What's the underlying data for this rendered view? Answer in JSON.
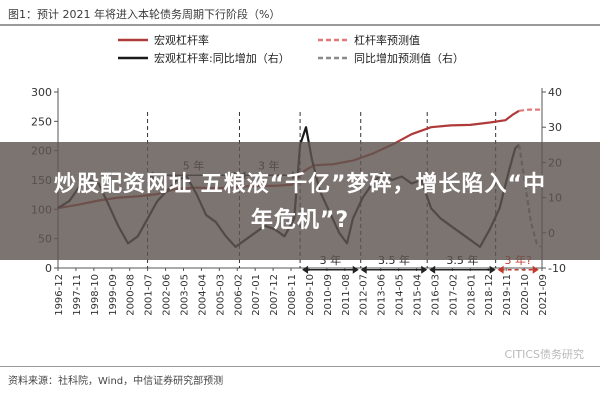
{
  "figure": {
    "title": "图1：预计 2021 年将进入本轮债务周期下行阶段（%）",
    "source": "资料来源：社科院，Wind，中信证券研究部预测",
    "watermark": "CITICS债务研究"
  },
  "overlay": {
    "line1": "炒股配资网址 五粮液“千亿”梦碎，增长陷入“中",
    "line2": "年危机”?"
  },
  "chart_data": {
    "type": "line",
    "x_ticks": [
      "1996-12",
      "1997-11",
      "1998-10",
      "1999-09",
      "2000-08",
      "2001-07",
      "2002-06",
      "2003-05",
      "2004-04",
      "2005-03",
      "2006-02",
      "2007-01",
      "2007-12",
      "2008-11",
      "2009-10",
      "2010-09",
      "2011-08",
      "2012-07",
      "2013-06",
      "2014-05",
      "2015-04",
      "2016-03",
      "2017-02",
      "2018-01",
      "2018-12",
      "2019-11",
      "2020-10",
      "2021-09"
    ],
    "x_range": [
      1996.92,
      2021.67
    ],
    "y_left": {
      "ticks": [
        0,
        50,
        100,
        150,
        200,
        250,
        300
      ],
      "range": [
        0,
        300
      ]
    },
    "y_right": {
      "ticks": [
        -10,
        0,
        10,
        20,
        30,
        40
      ],
      "range": [
        -10,
        40
      ]
    },
    "legend": [
      {
        "label": "宏观杠杆率",
        "color": "#b03a3a",
        "style": "solid"
      },
      {
        "label": "杠杆率预测值",
        "color": "#e07a7a",
        "style": "dashed"
      },
      {
        "label": "宏观杠杆率:同比增加（右）",
        "color": "#1a1a1a",
        "style": "solid"
      },
      {
        "label": "同比增加预测值（右）",
        "color": "#8a8a8a",
        "style": "dashed"
      }
    ],
    "series": [
      {
        "name": "宏观杠杆率",
        "axis": "left",
        "color": "#b03a3a",
        "dash": false,
        "points": [
          [
            1996.9,
            102
          ],
          [
            1998,
            108
          ],
          [
            1999,
            115
          ],
          [
            2000,
            120
          ],
          [
            2001,
            122
          ],
          [
            2002,
            126
          ],
          [
            2003,
            135
          ],
          [
            2004,
            137
          ],
          [
            2005,
            136
          ],
          [
            2006,
            138
          ],
          [
            2007,
            140
          ],
          [
            2008,
            140
          ],
          [
            2008.9,
            142
          ],
          [
            2009.5,
            165
          ],
          [
            2010,
            175
          ],
          [
            2011,
            177
          ],
          [
            2012,
            183
          ],
          [
            2013,
            195
          ],
          [
            2014,
            210
          ],
          [
            2015,
            228
          ],
          [
            2016,
            240
          ],
          [
            2017,
            243
          ],
          [
            2018,
            244
          ],
          [
            2019,
            248
          ],
          [
            2019.8,
            252
          ],
          [
            2020.2,
            262
          ],
          [
            2020.5,
            268
          ]
        ]
      },
      {
        "name": "杠杆率预测值",
        "axis": "left",
        "color": "#e07a7a",
        "dash": true,
        "points": [
          [
            2020.5,
            268
          ],
          [
            2021,
            270
          ],
          [
            2021.6,
            270
          ]
        ]
      },
      {
        "name": "宏观杠杆率:同比增加（右）",
        "axis": "right",
        "color": "#1a1a1a",
        "dash": false,
        "points": [
          [
            1996.9,
            7
          ],
          [
            1997.5,
            9
          ],
          [
            1998,
            13
          ],
          [
            1998.5,
            15
          ],
          [
            1999,
            14
          ],
          [
            1999.5,
            8
          ],
          [
            2000,
            2
          ],
          [
            2000.5,
            -3
          ],
          [
            2001,
            -1
          ],
          [
            2001.5,
            4
          ],
          [
            2002,
            9
          ],
          [
            2002.5,
            12
          ],
          [
            2003,
            15
          ],
          [
            2003.5,
            16
          ],
          [
            2004,
            11
          ],
          [
            2004.5,
            5
          ],
          [
            2005,
            3
          ],
          [
            2005.5,
            -1
          ],
          [
            2006,
            -4
          ],
          [
            2006.5,
            -2
          ],
          [
            2007,
            0
          ],
          [
            2007.5,
            2
          ],
          [
            2008,
            1
          ],
          [
            2008.5,
            -1
          ],
          [
            2009,
            4
          ],
          [
            2009.3,
            25
          ],
          [
            2009.6,
            30
          ],
          [
            2009.9,
            21
          ],
          [
            2010.3,
            12
          ],
          [
            2010.8,
            6
          ],
          [
            2011.3,
            0
          ],
          [
            2011.7,
            -3
          ],
          [
            2012,
            4
          ],
          [
            2012.5,
            10
          ],
          [
            2013,
            14
          ],
          [
            2013.5,
            17
          ],
          [
            2014,
            15
          ],
          [
            2014.5,
            16
          ],
          [
            2015,
            14
          ],
          [
            2015.5,
            15
          ],
          [
            2016,
            7
          ],
          [
            2016.5,
            4
          ],
          [
            2017,
            2
          ],
          [
            2017.5,
            0
          ],
          [
            2018,
            -2
          ],
          [
            2018.5,
            -4
          ],
          [
            2019,
            1
          ],
          [
            2019.5,
            7
          ],
          [
            2020,
            18
          ],
          [
            2020.3,
            24
          ],
          [
            2020.5,
            25
          ]
        ]
      },
      {
        "name": "同比增加预测值（右）",
        "axis": "right",
        "color": "#8a8a8a",
        "dash": true,
        "points": [
          [
            2020.5,
            25
          ],
          [
            2020.8,
            14
          ],
          [
            2021.1,
            3
          ],
          [
            2021.4,
            -3
          ],
          [
            2021.6,
            -4
          ]
        ]
      }
    ],
    "annotations": [
      {
        "text": "5 年",
        "from": 2001.5,
        "to": 2006.2,
        "y_left": 158,
        "style": "solid"
      },
      {
        "text": "3 年",
        "from": 2006.2,
        "to": 2009.2,
        "y_left": 158,
        "style": "solid"
      },
      {
        "text": "3 年",
        "from": 2009.4,
        "to": 2012.3,
        "y_left": -3,
        "style": "solid"
      },
      {
        "text": "3.5 年",
        "from": 2012.4,
        "to": 2015.8,
        "y_left": -3,
        "style": "solid"
      },
      {
        "text": "3.5 年",
        "from": 2015.9,
        "to": 2019.3,
        "y_left": -3,
        "style": "solid"
      },
      {
        "text": "3 年?",
        "from": 2019.4,
        "to": 2021.5,
        "y_left": -3,
        "style": "dashed",
        "color": "#c0392b"
      }
    ],
    "dividers": [
      2001.5,
      2006.2,
      2009.3,
      2012.4,
      2015.8,
      2019.3
    ],
    "grid": false
  }
}
